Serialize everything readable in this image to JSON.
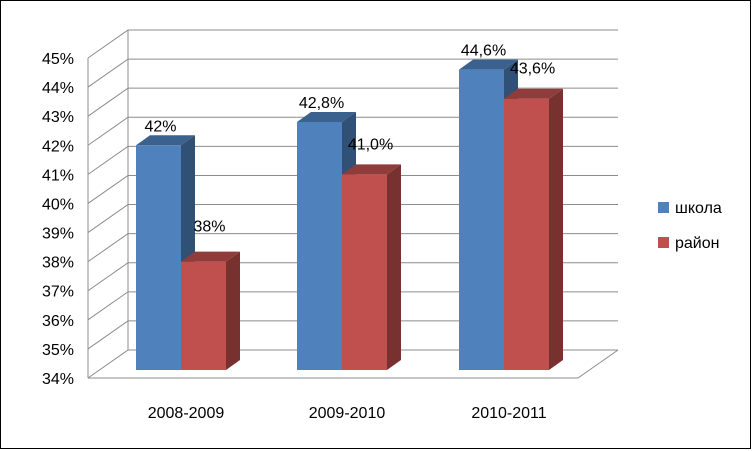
{
  "chart_data": {
    "type": "bar",
    "title": "",
    "xlabel": "",
    "ylabel": "",
    "categories": [
      "2008-2009",
      "2009-2010",
      "2010-2011"
    ],
    "series": [
      {
        "name": "школа",
        "values": [
          42.0,
          42.8,
          44.6
        ],
        "labels": [
          "42%",
          "42,8%",
          "44,6%"
        ],
        "color": "#4f81bd"
      },
      {
        "name": "район",
        "values": [
          38.0,
          41.0,
          43.6
        ],
        "labels": [
          "38%",
          "41,0%",
          "43,6%"
        ],
        "color": "#c0504d"
      }
    ],
    "ylim": [
      34,
      45
    ],
    "yticks": [
      {
        "value": 34,
        "label": "34%"
      },
      {
        "value": 35,
        "label": "35%"
      },
      {
        "value": 36,
        "label": "36%"
      },
      {
        "value": 37,
        "label": "37%"
      },
      {
        "value": 38,
        "label": "38%"
      },
      {
        "value": 39,
        "label": "39%"
      },
      {
        "value": 40,
        "label": "40%"
      },
      {
        "value": 41,
        "label": "41%"
      },
      {
        "value": 42,
        "label": "42%"
      },
      {
        "value": 43,
        "label": "43%"
      },
      {
        "value": 44,
        "label": "44%"
      },
      {
        "value": 45,
        "label": "45%"
      }
    ],
    "grid": true,
    "style": "3d",
    "legend_position": "right"
  }
}
